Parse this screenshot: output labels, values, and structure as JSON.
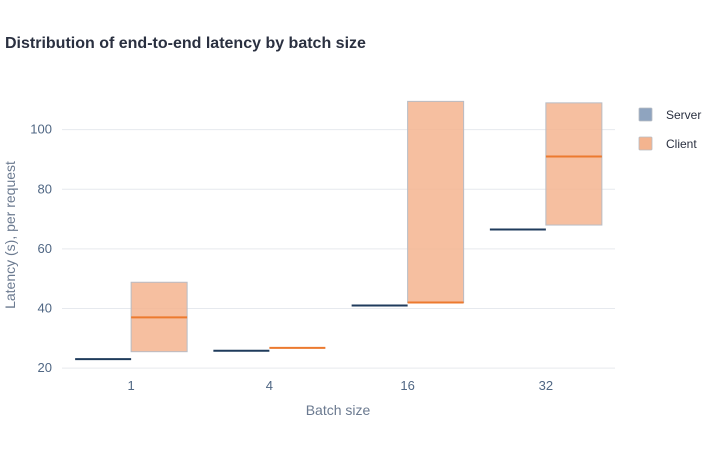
{
  "chart_data": {
    "type": "box",
    "title": "Distribution of end-to-end latency by batch size",
    "xlabel": "Batch size",
    "ylabel": "Latency (s), per request",
    "categories": [
      "1",
      "4",
      "16",
      "32"
    ],
    "ylim": [
      16,
      116
    ],
    "yticks": [
      20,
      40,
      60,
      80,
      100
    ],
    "grid": true,
    "legend_position": "top-right",
    "series": [
      {
        "name": "Server",
        "color": "#1f3b5c",
        "fill": "#8fa4bf",
        "boxes": [
          {
            "category": "1",
            "q1": 23,
            "median": 23,
            "q3": 23
          },
          {
            "category": "4",
            "q1": 25.8,
            "median": 25.8,
            "q3": 25.8
          },
          {
            "category": "16",
            "q1": 41,
            "median": 41,
            "q3": 41
          },
          {
            "category": "32",
            "q1": 66.5,
            "median": 66.5,
            "q3": 66.5
          }
        ]
      },
      {
        "name": "Client",
        "color": "#ec7a2f",
        "fill": "#f4b48f",
        "boxes": [
          {
            "category": "1",
            "q1": 25.5,
            "median": 37,
            "q3": 48.8
          },
          {
            "category": "4",
            "q1": 26.8,
            "median": 26.8,
            "q3": 26.8
          },
          {
            "category": "16",
            "q1": 42,
            "median": 42,
            "q3": 109.5
          },
          {
            "category": "32",
            "q1": 68,
            "median": 91,
            "q3": 109
          }
        ]
      }
    ]
  }
}
